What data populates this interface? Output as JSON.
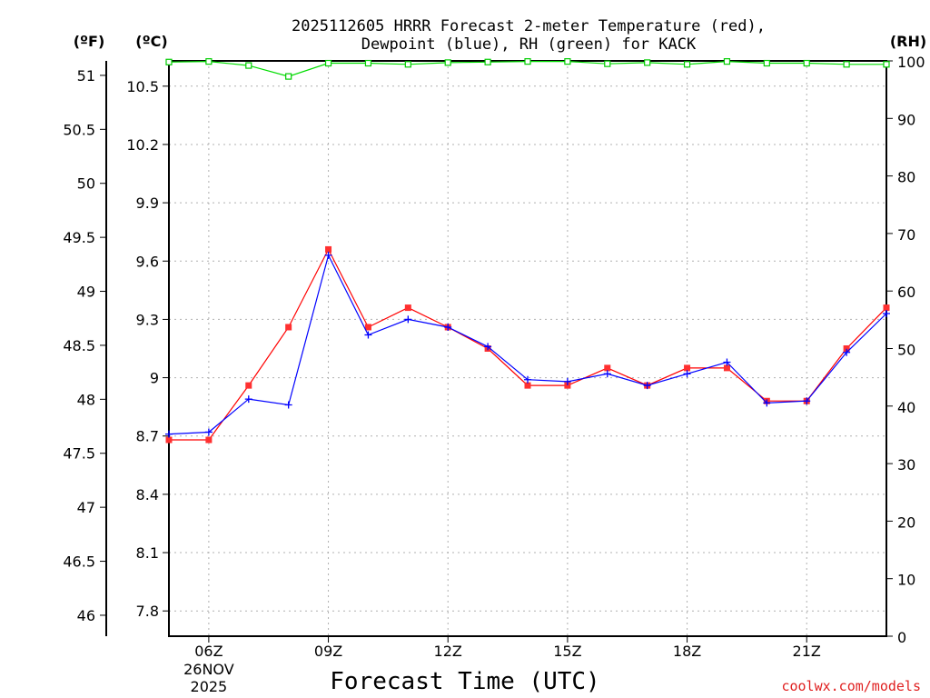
{
  "chart_data": {
    "type": "line",
    "title_line1": "2025112605 HRRR Forecast 2-meter Temperature (red),",
    "title_line2": "Dewpoint (blue), RH (green) for KACK",
    "xlabel": "Forecast Time (UTC)",
    "credit": "coolwx.com/models",
    "units": {
      "fahrenheit": "(ºF)",
      "celsius": "(ºC)",
      "rh": "(RH)"
    },
    "x_range_hours": [
      5,
      23
    ],
    "x_ticks": [
      {
        "hour": 6,
        "label": "06Z",
        "sub1": "26NOV",
        "sub2": "2025"
      },
      {
        "hour": 9,
        "label": "09Z"
      },
      {
        "hour": 12,
        "label": "12Z"
      },
      {
        "hour": 15,
        "label": "15Z"
      },
      {
        "hour": 18,
        "label": "18Z"
      },
      {
        "hour": 21,
        "label": "21Z"
      }
    ],
    "ylim_celsius": [
      7.67,
      10.63
    ],
    "ylim_rh": [
      0,
      100
    ],
    "celsius_ticks": [
      "7.8",
      "8.1",
      "8.4",
      "8.7",
      "9",
      "9.3",
      "9.6",
      "9.9",
      "10.2",
      "10.5"
    ],
    "fahrenheit_ticks": [
      "46",
      "46.5",
      "47",
      "47.5",
      "48",
      "48.5",
      "49",
      "49.5",
      "50",
      "50.5",
      "51"
    ],
    "rh_ticks": [
      "0",
      "10",
      "20",
      "30",
      "40",
      "50",
      "60",
      "70",
      "80",
      "90",
      "100"
    ],
    "series": [
      {
        "name": "Temperature",
        "color": "#ff0000",
        "marker_color": "#ff3030",
        "marker": "square",
        "axis": "celsius",
        "x": [
          5,
          6,
          7,
          8,
          9,
          10,
          11,
          12,
          13,
          14,
          15,
          16,
          17,
          18,
          19,
          20,
          21,
          22,
          23
        ],
        "values": [
          8.68,
          8.68,
          8.96,
          9.26,
          9.66,
          9.26,
          9.36,
          9.26,
          9.15,
          8.96,
          8.96,
          9.05,
          8.96,
          9.05,
          9.05,
          8.88,
          8.88,
          9.15,
          9.36
        ]
      },
      {
        "name": "Dewpoint",
        "color": "#0000ff",
        "marker_color": "#0000ff",
        "marker": "plus",
        "axis": "celsius",
        "x": [
          5,
          6,
          7,
          8,
          9,
          10,
          11,
          12,
          13,
          14,
          15,
          16,
          17,
          18,
          19,
          20,
          21,
          22,
          23
        ],
        "values": [
          8.71,
          8.72,
          8.89,
          8.86,
          9.63,
          9.22,
          9.3,
          9.26,
          9.16,
          8.99,
          8.98,
          9.02,
          8.96,
          9.02,
          9.08,
          8.87,
          8.88,
          9.13,
          9.33
        ]
      },
      {
        "name": "RH",
        "color": "#00dd00",
        "marker_color": "#00cc00",
        "marker": "open-square",
        "axis": "rh",
        "x": [
          5,
          6,
          7,
          8,
          9,
          10,
          11,
          12,
          13,
          14,
          15,
          16,
          17,
          18,
          19,
          20,
          21,
          22,
          23
        ],
        "values": [
          99.8,
          99.9,
          99.2,
          97.3,
          99.6,
          99.6,
          99.4,
          99.7,
          99.8,
          99.9,
          99.9,
          99.5,
          99.7,
          99.4,
          99.9,
          99.6,
          99.6,
          99.4,
          99.4
        ]
      }
    ]
  }
}
